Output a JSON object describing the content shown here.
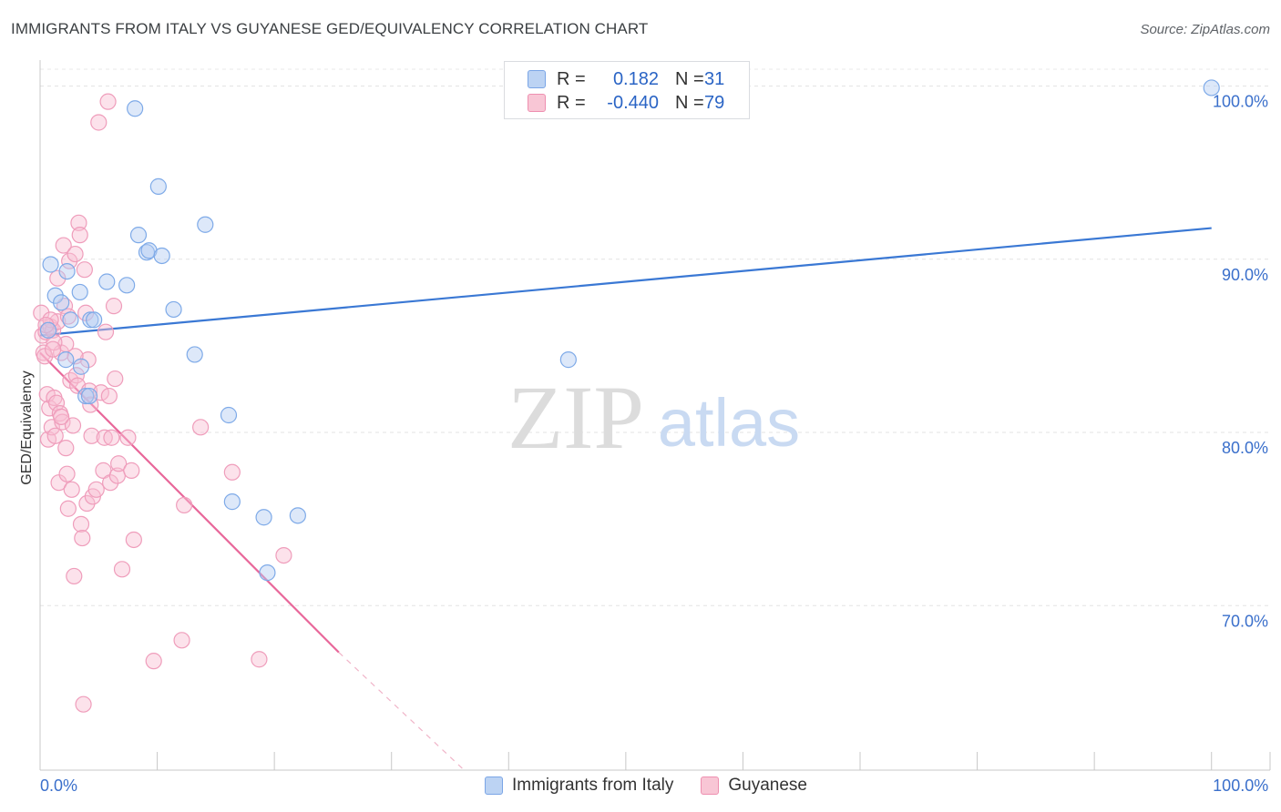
{
  "header": {
    "title": "IMMIGRANTS FROM ITALY VS GUYANESE GED/EQUIVALENCY CORRELATION CHART",
    "source": "Source: ZipAtlas.com"
  },
  "legend": {
    "series1": {
      "r_label": "R =",
      "r_value": "0.182",
      "n_label": "N =",
      "n_value": "31"
    },
    "series2": {
      "r_label": "R =",
      "r_value": "-0.440",
      "n_label": "N =",
      "n_value": "79"
    }
  },
  "watermark": {
    "zip": "ZIP",
    "atlas": "atlas"
  },
  "colors": {
    "blue": "#3a78d4",
    "pink": "#e8679a",
    "blue_fill": "#bcd3f3",
    "pink_fill": "#f8c6d5",
    "tick_label": "#3a6fcb"
  },
  "chart_data": {
    "type": "scatter",
    "title": "IMMIGRANTS FROM ITALY VS GUYANESE GED/EQUIVALENCY CORRELATION CHART",
    "xlabel": "",
    "ylabel": "GED/Equivalency",
    "xlim": [
      0,
      105
    ],
    "ylim": [
      60.5,
      101.5
    ],
    "x_tick_labels": [
      {
        "value": 0,
        "label": "0.0%"
      },
      {
        "value": 100,
        "label": "100.0%"
      }
    ],
    "y_tick_labels": [
      {
        "value": 100,
        "label": "100.0%"
      },
      {
        "value": 90,
        "label": "90.0%"
      },
      {
        "value": 80,
        "label": "80.0%"
      },
      {
        "value": 70,
        "label": "70.0%"
      }
    ],
    "grid": true,
    "legend_position": "top-center",
    "series": [
      {
        "name": "Immigrants from Italy",
        "color": "#3a78d4",
        "points": [
          [
            0.9,
            89.7
          ],
          [
            1.3,
            87.9
          ],
          [
            1.8,
            87.5
          ],
          [
            0.7,
            85.9
          ],
          [
            2.3,
            89.3
          ],
          [
            3.4,
            88.1
          ],
          [
            2.2,
            84.2
          ],
          [
            3.5,
            83.8
          ],
          [
            3.9,
            82.1
          ],
          [
            4.3,
            86.5
          ],
          [
            4.6,
            86.5
          ],
          [
            5.7,
            88.7
          ],
          [
            7.4,
            88.5
          ],
          [
            8.1,
            98.7
          ],
          [
            8.4,
            91.4
          ],
          [
            9.1,
            90.4
          ],
          [
            9.3,
            90.5
          ],
          [
            10.1,
            94.2
          ],
          [
            10.4,
            90.2
          ],
          [
            11.4,
            87.1
          ],
          [
            13.2,
            84.5
          ],
          [
            14.1,
            92.0
          ],
          [
            2.6,
            86.5
          ],
          [
            4.2,
            82.1
          ],
          [
            16.1,
            81.0
          ],
          [
            16.4,
            76.0
          ],
          [
            19.1,
            75.1
          ],
          [
            19.4,
            71.9
          ],
          [
            22.0,
            75.2
          ],
          [
            45.1,
            84.2
          ],
          [
            100.0,
            99.9
          ]
        ],
        "trend": [
          [
            0,
            85.6
          ],
          [
            100,
            91.8
          ]
        ]
      },
      {
        "name": "Guyanese",
        "color": "#e8679a",
        "points": [
          [
            0.1,
            86.9
          ],
          [
            0.2,
            85.6
          ],
          [
            0.3,
            84.6
          ],
          [
            0.4,
            84.4
          ],
          [
            0.5,
            85.8
          ],
          [
            0.6,
            82.2
          ],
          [
            0.7,
            79.6
          ],
          [
            0.8,
            81.4
          ],
          [
            0.9,
            86.1
          ],
          [
            1.0,
            80.3
          ],
          [
            1.1,
            85.9
          ],
          [
            1.2,
            82.0
          ],
          [
            1.3,
            79.8
          ],
          [
            1.4,
            81.7
          ],
          [
            1.5,
            86.4
          ],
          [
            1.6,
            77.1
          ],
          [
            1.7,
            81.1
          ],
          [
            1.8,
            84.6
          ],
          [
            1.9,
            80.6
          ],
          [
            2.0,
            90.8
          ],
          [
            2.1,
            87.3
          ],
          [
            2.2,
            85.1
          ],
          [
            2.3,
            77.6
          ],
          [
            2.4,
            75.6
          ],
          [
            2.5,
            89.9
          ],
          [
            2.6,
            83.0
          ],
          [
            2.7,
            76.7
          ],
          [
            2.8,
            80.4
          ],
          [
            2.9,
            71.7
          ],
          [
            3.0,
            90.3
          ],
          [
            3.1,
            83.3
          ],
          [
            3.2,
            82.7
          ],
          [
            3.3,
            92.1
          ],
          [
            3.4,
            91.4
          ],
          [
            3.5,
            74.7
          ],
          [
            3.6,
            73.9
          ],
          [
            3.7,
            64.3
          ],
          [
            3.8,
            89.4
          ],
          [
            3.9,
            86.9
          ],
          [
            4.0,
            75.9
          ],
          [
            4.1,
            84.2
          ],
          [
            4.2,
            82.4
          ],
          [
            4.3,
            81.6
          ],
          [
            4.4,
            79.8
          ],
          [
            4.5,
            76.3
          ],
          [
            5.0,
            97.9
          ],
          [
            5.2,
            82.3
          ],
          [
            5.4,
            77.8
          ],
          [
            5.5,
            79.7
          ],
          [
            5.6,
            85.8
          ],
          [
            5.8,
            99.1
          ],
          [
            5.9,
            82.1
          ],
          [
            6.0,
            77.1
          ],
          [
            6.1,
            79.7
          ],
          [
            6.3,
            87.3
          ],
          [
            6.4,
            83.1
          ],
          [
            6.6,
            77.5
          ],
          [
            6.7,
            78.2
          ],
          [
            7.0,
            72.1
          ],
          [
            7.5,
            79.7
          ],
          [
            7.8,
            77.8
          ],
          [
            8.0,
            73.8
          ],
          [
            9.7,
            66.8
          ],
          [
            12.1,
            68.0
          ],
          [
            12.3,
            75.8
          ],
          [
            13.7,
            80.3
          ],
          [
            16.4,
            77.7
          ],
          [
            18.7,
            66.9
          ],
          [
            20.8,
            72.9
          ],
          [
            1.5,
            88.9
          ],
          [
            0.9,
            86.5
          ],
          [
            1.2,
            85.2
          ],
          [
            1.1,
            84.8
          ],
          [
            2.4,
            86.7
          ],
          [
            3.0,
            84.4
          ],
          [
            4.8,
            76.7
          ],
          [
            1.8,
            80.9
          ],
          [
            2.2,
            79.1
          ],
          [
            0.5,
            86.2
          ]
        ],
        "trend": [
          [
            0,
            84.6
          ],
          [
            25.5,
            67.3
          ]
        ],
        "trend_extension": [
          [
            25.5,
            67.3
          ],
          [
            36.2,
            60.5
          ]
        ]
      }
    ]
  },
  "bottom_legend": {
    "item1": "Immigrants from Italy",
    "item2": "Guyanese"
  }
}
